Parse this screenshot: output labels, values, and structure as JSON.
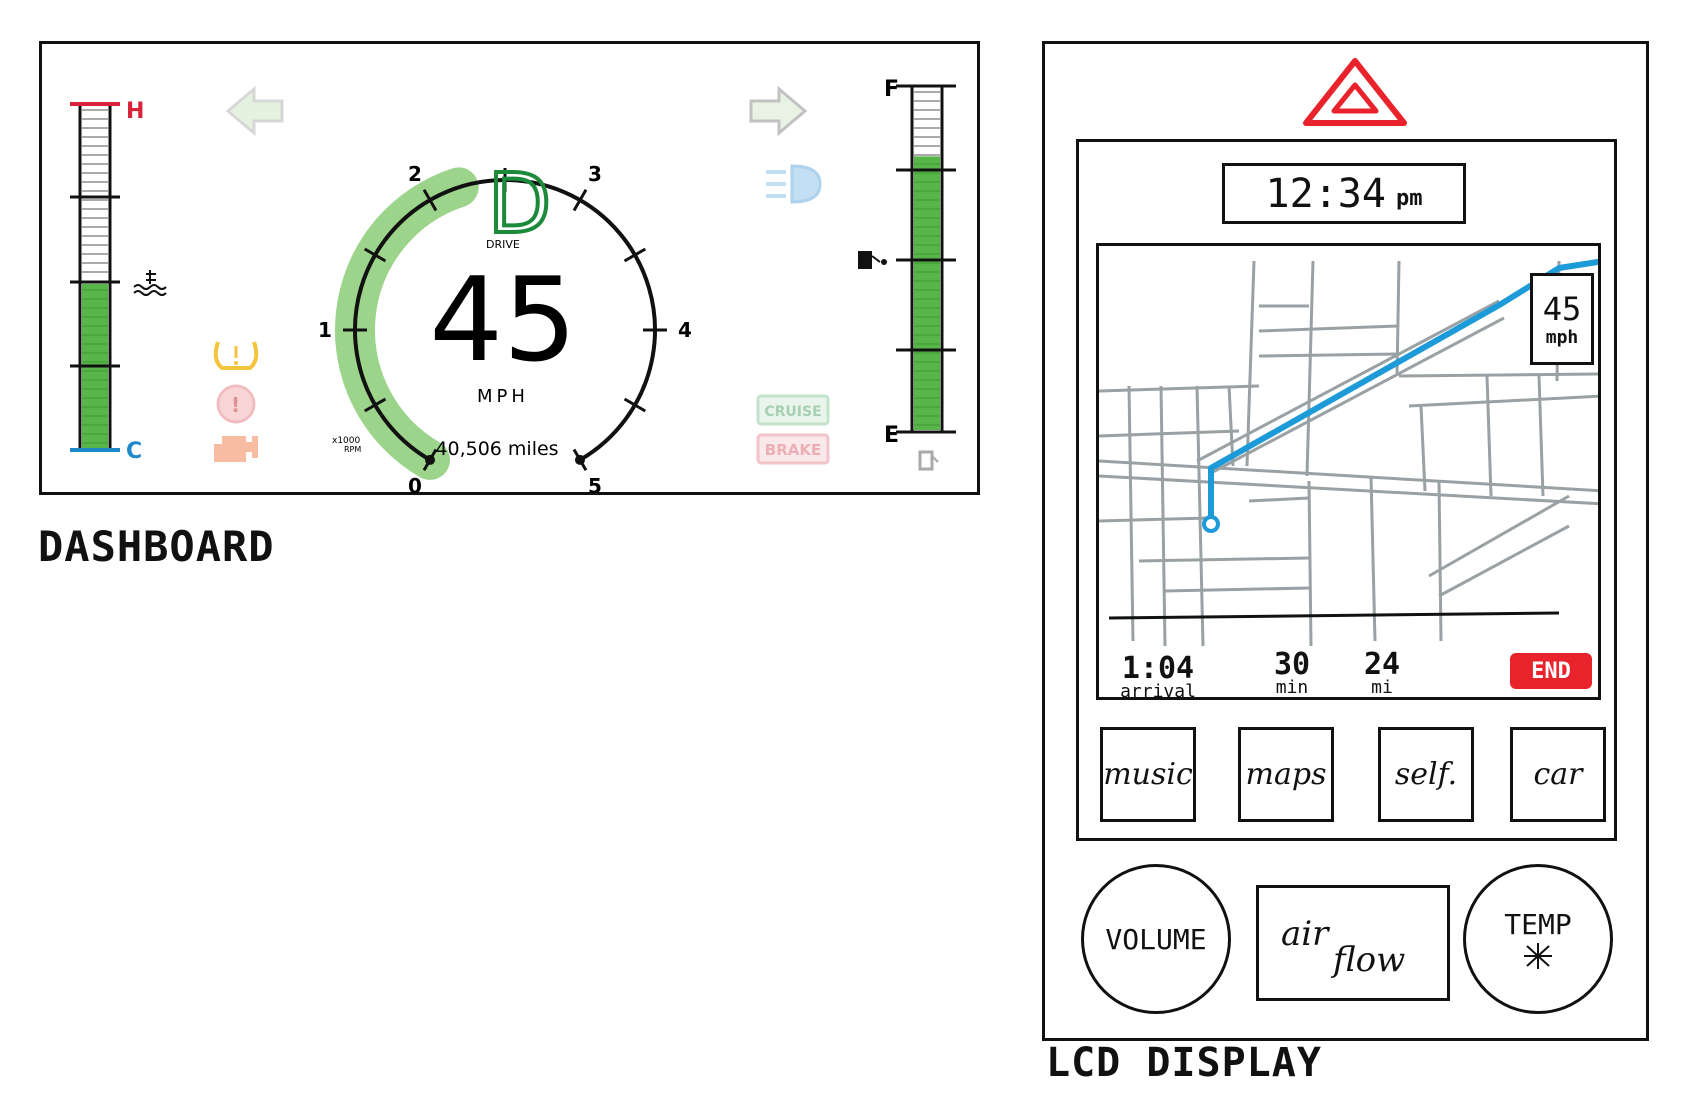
{
  "dashboard": {
    "caption": "DASHBOARD",
    "temp_gauge": {
      "hot_label": "H",
      "cold_label": "C",
      "level": 0.48
    },
    "fuel_gauge": {
      "full_label": "F",
      "empty_label": "E",
      "level": 0.8
    },
    "gear": {
      "letter": "D",
      "label": "DRIVE"
    },
    "speed": {
      "value": "45",
      "unit": "MPH"
    },
    "odometer": "40,506 miles",
    "tachometer": {
      "ticks": [
        "0",
        "1",
        "2",
        "3",
        "4",
        "5"
      ],
      "unit_top": "x1000",
      "unit_bottom": "RPM",
      "level": 2.2
    },
    "indicators": {
      "cruise": "CRUISE",
      "brake": "BRAKE"
    },
    "colors": {
      "gauge_fill": "#3aa82a",
      "hot": "#d8243a",
      "cold": "#1e88c9",
      "gear": "#1c8a3a"
    }
  },
  "lcd": {
    "caption": "LCD DISPLAY",
    "clock": {
      "time": "12:34",
      "ampm": "pm"
    },
    "map": {
      "speed_limit": "45",
      "speed_unit": "mph",
      "route_color": "#1d9bd8"
    },
    "trip": {
      "arrival": {
        "value": "1:04",
        "label": "arrival"
      },
      "duration": {
        "value": "30",
        "label": "min"
      },
      "distance": {
        "value": "24",
        "label": "mi"
      },
      "end_label": "END"
    },
    "apps": [
      "music",
      "maps",
      "self.",
      "car"
    ],
    "controls": {
      "volume": "VOLUME",
      "airflow_1": "air",
      "airflow_2": "flow",
      "temp": "TEMP"
    },
    "colors": {
      "hazard": "#e8232c",
      "end": "#e8232c"
    }
  }
}
